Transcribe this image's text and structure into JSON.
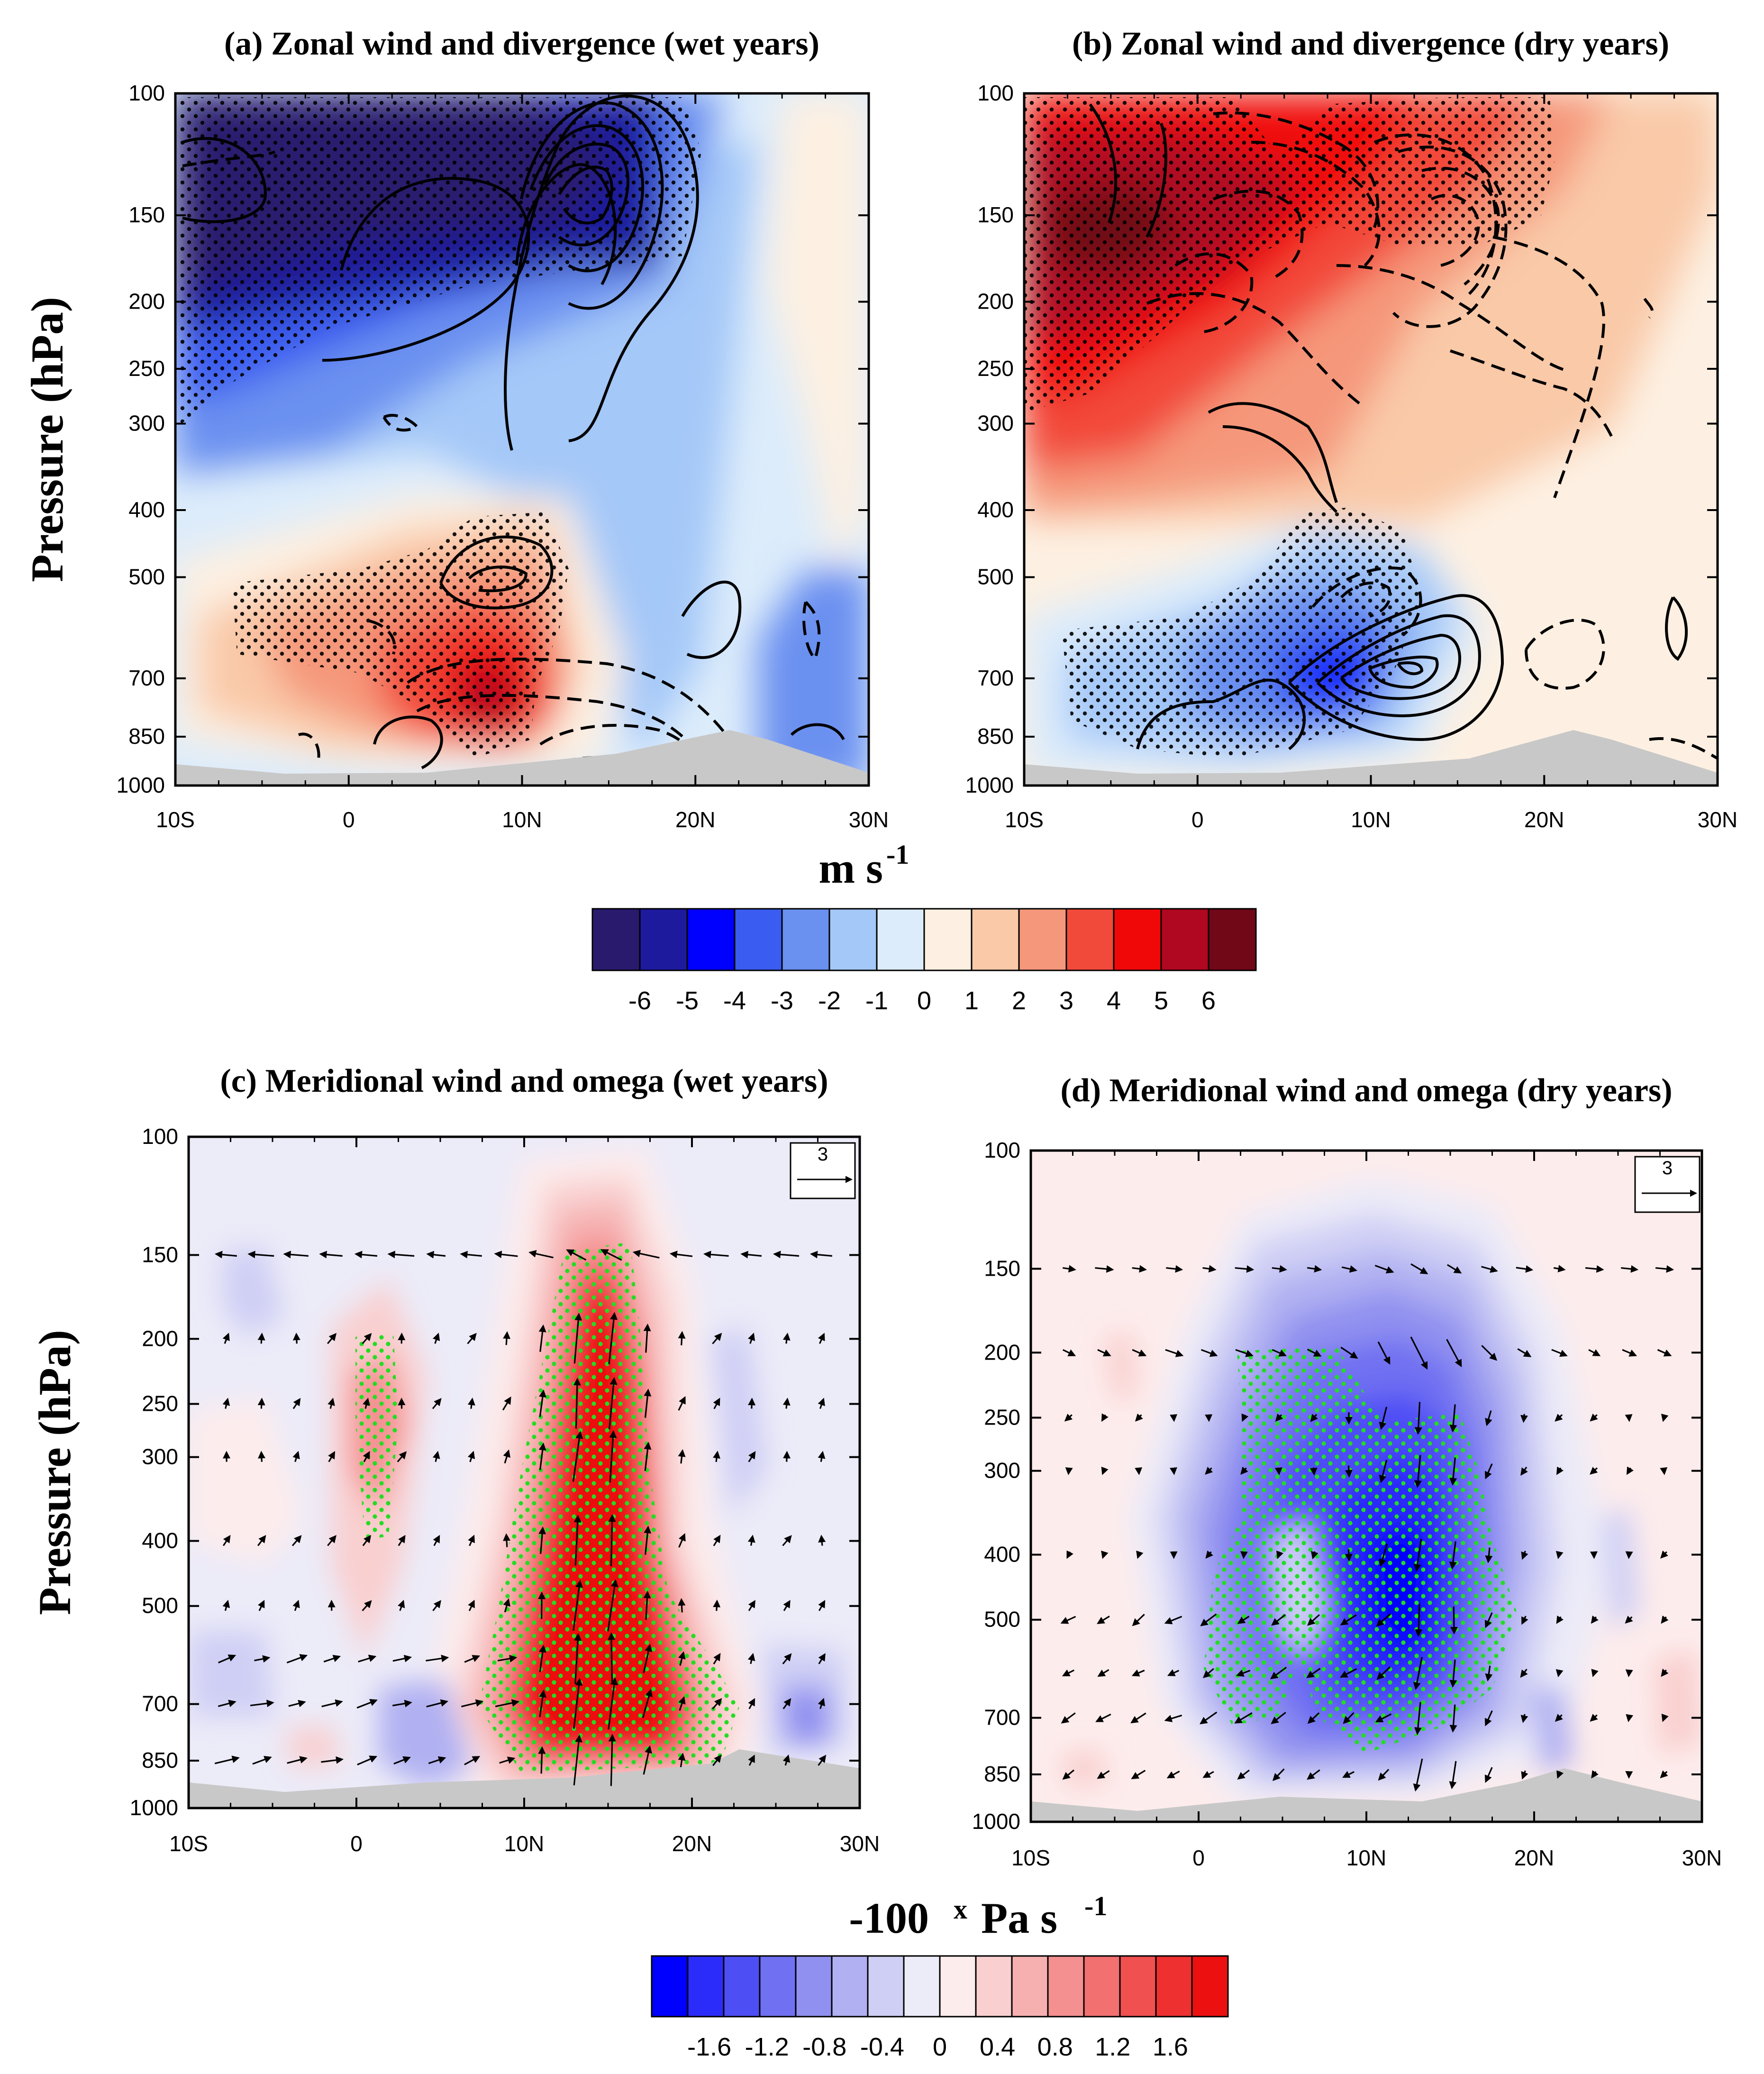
{
  "colors": {
    "wind_scale": [
      "#2a1a6e",
      "#1e1a9e",
      "#0000ff",
      "#3a5cf0",
      "#6a90f0",
      "#a4c8f8",
      "#dcecfb",
      "#fdf0e2",
      "#f9c9a8",
      "#f5977a",
      "#f24a3a",
      "#f00808",
      "#b00820",
      "#700818"
    ],
    "omega_scale": [
      "#0000ff",
      "#2c2cfa",
      "#4e4ef5",
      "#7070f2",
      "#9090f0",
      "#b0b0f2",
      "#cfcff5",
      "#ecebf8",
      "#fdecec",
      "#f9cfcf",
      "#f6b0b0",
      "#f49090",
      "#f27070",
      "#f05050",
      "#ee3030",
      "#ec1010"
    ],
    "stipple_wind": "#000000",
    "stipple_omega": "#22dd22",
    "topo": "#c8c8c8"
  },
  "colorbars": {
    "wind": {
      "unit": "m s",
      "unit_exp": "-1",
      "labels": [
        "-6",
        "-5",
        "-4",
        "-3",
        "-2",
        "-1",
        "0",
        "1",
        "2",
        "3",
        "4",
        "5",
        "6"
      ]
    },
    "omega": {
      "unit_prefix": "-100",
      "unit_x": "x",
      "unit": "Pa s",
      "unit_exp": "-1",
      "labels": [
        "-1.6",
        "-1.2",
        "-0.8",
        "-0.4",
        "0",
        "0.4",
        "0.8",
        "1.2",
        "1.6"
      ]
    }
  },
  "ylabel": "Pressure (hPa)",
  "chart_data": [
    {
      "panel": "a",
      "type": "heatmap",
      "title": "(a) Zonal wind and divergence (wet years)",
      "xlabel": "",
      "ylabel": "Pressure (hPa)",
      "x_ticks": [
        "10S",
        "0",
        "10N",
        "20N",
        "30N"
      ],
      "xlim": [
        -10,
        30
      ],
      "y_ticks": [
        100,
        150,
        200,
        250,
        300,
        400,
        500,
        700,
        850,
        1000
      ],
      "ylim": [
        1000,
        100
      ],
      "y_scale": "log",
      "features": [
        {
          "x": -3,
          "p": 150,
          "u": -6
        },
        {
          "x": 8,
          "p": 150,
          "u": -5
        },
        {
          "x": 13,
          "p": 160,
          "u": -4
        },
        {
          "x": 0,
          "p": 280,
          "u": -2
        },
        {
          "x": 20,
          "p": 300,
          "u": -1
        },
        {
          "x": 26,
          "p": 120,
          "u": 0.5
        },
        {
          "x": 7,
          "p": 460,
          "u": 3
        },
        {
          "x": 7,
          "p": 720,
          "u": 5
        },
        {
          "x": 28,
          "p": 780,
          "u": -2
        }
      ]
    },
    {
      "panel": "b",
      "type": "heatmap",
      "title": "(b) Zonal wind and divergence (dry years)",
      "xlabel": "",
      "ylabel": "",
      "x_ticks": [
        "10S",
        "0",
        "10N",
        "20N",
        "30N"
      ],
      "xlim": [
        -10,
        30
      ],
      "y_ticks": [
        100,
        150,
        200,
        250,
        300,
        400,
        500,
        700,
        850,
        1000
      ],
      "ylim": [
        1000,
        100
      ],
      "y_scale": "log",
      "features": [
        {
          "x": -5,
          "p": 175,
          "u": 6
        },
        {
          "x": 6,
          "p": 140,
          "u": 5
        },
        {
          "x": 14,
          "p": 150,
          "u": 3
        },
        {
          "x": 24,
          "p": 220,
          "u": 2
        },
        {
          "x": 0,
          "p": 350,
          "u": 3
        },
        {
          "x": 8,
          "p": 720,
          "u": -5
        },
        {
          "x": 10,
          "p": 500,
          "u": -2
        },
        {
          "x": 26,
          "p": 600,
          "u": 0.5
        }
      ]
    },
    {
      "panel": "c",
      "type": "heatmap",
      "title": "(c) Meridional wind and omega (wet years)",
      "xlabel": "",
      "ylabel": "Pressure (hPa)",
      "x_ticks": [
        "10S",
        "0",
        "10N",
        "20N",
        "30N"
      ],
      "xlim": [
        -10,
        30
      ],
      "y_ticks": [
        100,
        150,
        200,
        250,
        300,
        400,
        500,
        700,
        850,
        1000
      ],
      "ylim": [
        1000,
        100
      ],
      "y_scale": "log",
      "reference_vector": "3",
      "features": [
        {
          "x": 15,
          "p": 300,
          "omega": 1.6
        },
        {
          "x": 14,
          "p": 600,
          "omega": 1.8
        },
        {
          "x": 2,
          "p": 250,
          "omega": 0.6
        },
        {
          "x": -6,
          "p": 330,
          "omega": 0.3
        },
        {
          "x": -5,
          "p": 160,
          "omega": -0.3
        },
        {
          "x": 5,
          "p": 800,
          "omega": -0.5
        },
        {
          "x": 27,
          "p": 700,
          "omega": -0.5
        }
      ]
    },
    {
      "panel": "d",
      "type": "heatmap",
      "title": "(d) Meridional wind and omega (dry years)",
      "xlabel": "",
      "ylabel": "",
      "x_ticks": [
        "10S",
        "0",
        "10N",
        "20N",
        "30N"
      ],
      "xlim": [
        -10,
        30
      ],
      "y_ticks": [
        100,
        150,
        200,
        250,
        300,
        400,
        500,
        700,
        850,
        1000
      ],
      "ylim": [
        1000,
        100
      ],
      "y_scale": "log",
      "reference_vector": "3",
      "features": [
        {
          "x": 12,
          "p": 480,
          "omega": -1.6
        },
        {
          "x": 5,
          "p": 320,
          "omega": -0.8
        },
        {
          "x": 9,
          "p": 250,
          "omega": -0.6
        },
        {
          "x": -5,
          "p": 180,
          "omega": 0.3
        },
        {
          "x": 28,
          "p": 720,
          "omega": 0.3
        },
        {
          "x": -7,
          "p": 850,
          "omega": 0.2
        }
      ]
    }
  ]
}
